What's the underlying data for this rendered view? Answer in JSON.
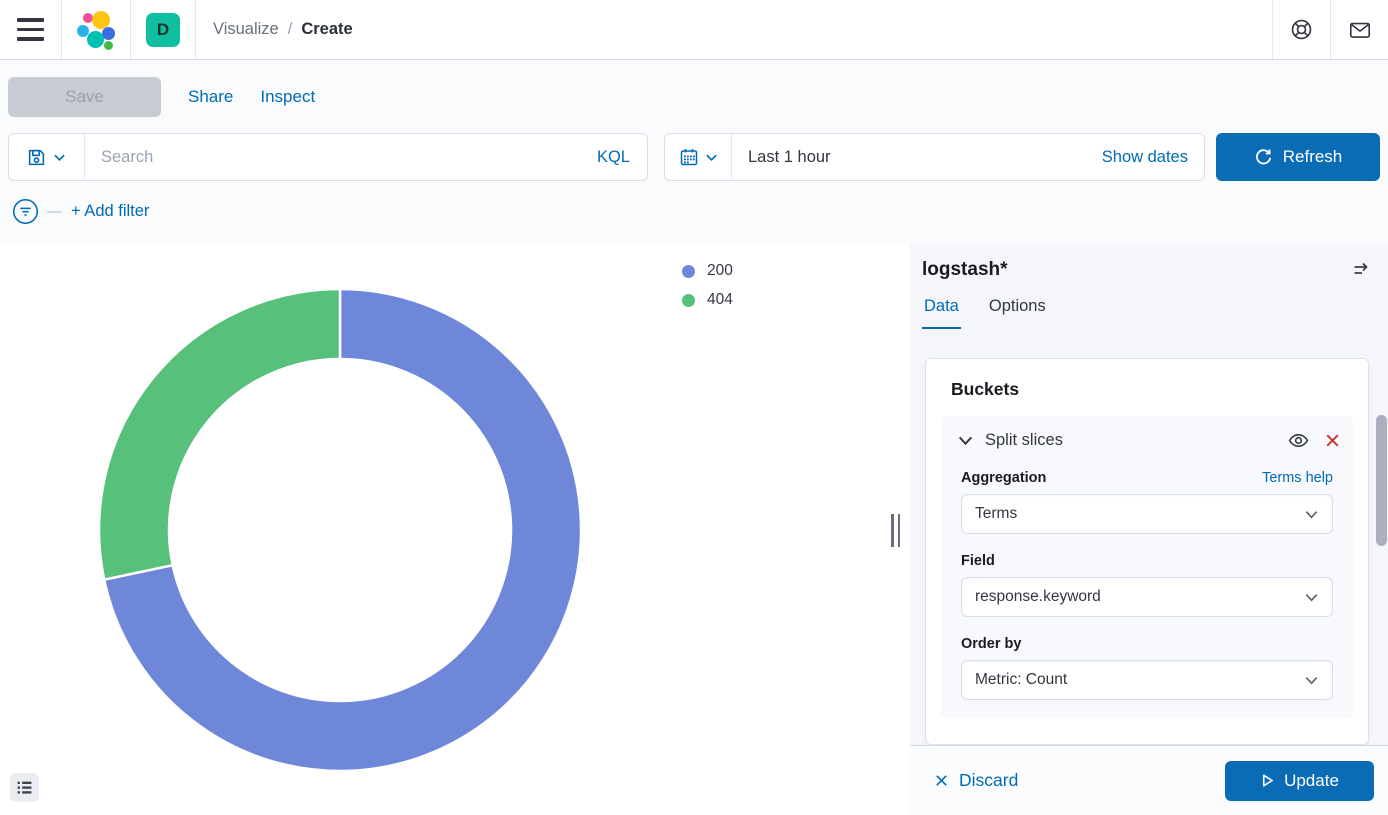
{
  "header": {
    "breadcrumb_parent": "Visualize",
    "breadcrumb_separator": "/",
    "breadcrumb_current": "Create",
    "space_badge": "D"
  },
  "action_bar": {
    "save": "Save",
    "share": "Share",
    "inspect": "Inspect"
  },
  "query_bar": {
    "search_placeholder": "Search",
    "kql": "KQL",
    "time_range": "Last 1 hour",
    "show_dates": "Show dates",
    "refresh": "Refresh"
  },
  "filter_bar": {
    "add_filter": "+ Add filter"
  },
  "chart_data": {
    "type": "pie",
    "subtype": "donut",
    "title": "",
    "categories": [
      "200",
      "404"
    ],
    "values_percent": [
      71.7,
      28.3
    ],
    "colors": [
      "#6F87D8",
      "#57C17B"
    ],
    "start_angle_deg": 0,
    "direction": "clockwise",
    "inner_radius_ratio": 0.71,
    "legend_position": "top-right",
    "legend_entries": [
      "200",
      "404"
    ]
  },
  "side_panel": {
    "title": "logstash*",
    "tabs": [
      {
        "label": "Data"
      },
      {
        "label": "Options"
      }
    ],
    "buckets": {
      "heading": "Buckets",
      "accordion_label": "Split slices",
      "fields": [
        {
          "label": "Aggregation",
          "value": "Terms",
          "link": "Terms help"
        },
        {
          "label": "Field",
          "value": "response.keyword"
        },
        {
          "label": "Order by",
          "value": "Metric: Count"
        }
      ]
    },
    "footer": {
      "discard": "Discard",
      "update": "Update"
    }
  },
  "colors": {
    "primary": "#006BB4",
    "danger": "#BD271E",
    "text": "#343741",
    "subdued_text": "#69707D",
    "border": "#D3DAE6",
    "space_badge_bg": "#10BF9F"
  },
  "icons": {
    "menu": "hamburger",
    "help": "lifebuoy",
    "notifications": "envelope",
    "saved_query": "floppy-disk",
    "date_picker": "calendar",
    "refresh": "circular-arrow",
    "filter": "funnel-in-circle",
    "legend_toggle": "list",
    "collapse_panel": "menu-right-arrow",
    "accordion": "chevron-down",
    "visibility": "eye",
    "remove": "cross",
    "discard": "cross",
    "update": "play"
  }
}
